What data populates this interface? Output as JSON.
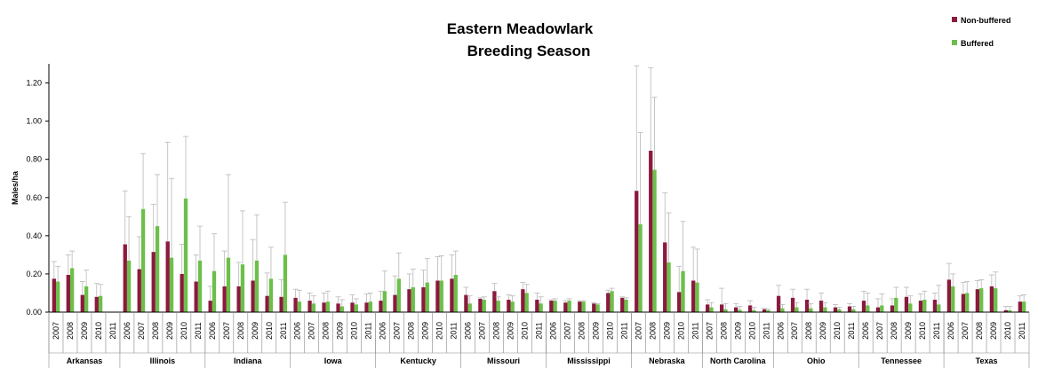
{
  "chart_data": {
    "type": "bar",
    "title_lines": [
      "Eastern Meadowlark",
      "Breeding Season"
    ],
    "ylabel": "Males/ha",
    "ylim": [
      0,
      1.3
    ],
    "yticks": [
      "0.00",
      "0.20",
      "0.40",
      "0.60",
      "0.80",
      "1.00",
      "1.20"
    ],
    "ytick_values": [
      0,
      0.2,
      0.4,
      0.6,
      0.8,
      1.0,
      1.2
    ],
    "legend_position": "top-right",
    "series": [
      {
        "name": "Non-buffered",
        "color": "#8B1A3D"
      },
      {
        "name": "Buffered",
        "color": "#6CC04A"
      }
    ],
    "error_bar_color": "#b8b8b8",
    "groups": [
      {
        "state": "Arkansas",
        "years": [
          "2007",
          "2008",
          "2009",
          "2010",
          "2011"
        ],
        "non_buffered": [
          0.175,
          0.195,
          0.09,
          0.08,
          null
        ],
        "nb_err": [
          0.265,
          0.3,
          0.16,
          0.15,
          null
        ],
        "buffered": [
          0.16,
          0.23,
          0.135,
          0.085,
          null
        ],
        "b_err": [
          0.24,
          0.32,
          0.22,
          0.145,
          null
        ]
      },
      {
        "state": "Illinois",
        "years": [
          "2006",
          "2007",
          "2008",
          "2009",
          "2010",
          "2011"
        ],
        "non_buffered": [
          0.355,
          0.225,
          0.315,
          0.37,
          0.2,
          0.16
        ],
        "nb_err": [
          0.635,
          0.395,
          0.565,
          0.89,
          0.355,
          0.3
        ],
        "buffered": [
          0.27,
          0.54,
          0.45,
          0.285,
          0.595,
          0.27
        ],
        "b_err": [
          0.5,
          0.83,
          0.72,
          0.7,
          0.92,
          0.45
        ]
      },
      {
        "state": "Indiana",
        "years": [
          "2006",
          "2007",
          "2008",
          "2009",
          "2010",
          "2011"
        ],
        "non_buffered": [
          0.06,
          0.135,
          0.135,
          0.165,
          0.085,
          0.08
        ],
        "nb_err": [
          0.135,
          0.32,
          0.26,
          0.38,
          0.205,
          0.17
        ],
        "buffered": [
          0.215,
          0.285,
          0.25,
          0.27,
          0.175,
          0.3
        ],
        "b_err": [
          0.41,
          0.72,
          0.53,
          0.51,
          0.34,
          0.575
        ]
      },
      {
        "state": "Iowa",
        "years": [
          "2006",
          "2007",
          "2008",
          "2009",
          "2010",
          "2011"
        ],
        "non_buffered": [
          0.075,
          0.06,
          0.05,
          0.045,
          0.05,
          0.05
        ],
        "nb_err": [
          0.12,
          0.1,
          0.1,
          0.08,
          0.09,
          0.095
        ],
        "buffered": [
          0.055,
          0.045,
          0.055,
          0.03,
          0.04,
          0.055
        ],
        "b_err": [
          0.115,
          0.085,
          0.11,
          0.065,
          0.07,
          0.1
        ]
      },
      {
        "state": "Kentucky",
        "years": [
          "2006",
          "2007",
          "2008",
          "2009",
          "2010",
          "2011"
        ],
        "non_buffered": [
          0.06,
          0.09,
          0.12,
          0.13,
          0.165,
          0.175
        ],
        "nb_err": [
          0.11,
          0.19,
          0.2,
          0.22,
          0.29,
          0.3
        ],
        "buffered": [
          0.11,
          0.175,
          0.13,
          0.155,
          0.165,
          0.195
        ],
        "b_err": [
          0.215,
          0.31,
          0.225,
          0.28,
          0.295,
          0.32
        ]
      },
      {
        "state": "Missouri",
        "years": [
          "2006",
          "2007",
          "2008",
          "2009",
          "2010",
          "2011"
        ],
        "non_buffered": [
          0.09,
          0.07,
          0.11,
          0.065,
          0.12,
          0.065
        ],
        "nb_err": [
          0.13,
          0.075,
          0.15,
          0.09,
          0.155,
          0.1
        ],
        "buffered": [
          0.045,
          0.065,
          0.06,
          0.055,
          0.1,
          0.045
        ],
        "b_err": [
          0.085,
          0.08,
          0.08,
          0.085,
          0.145,
          0.08
        ]
      },
      {
        "state": "Mississippi",
        "years": [
          "2006",
          "2007",
          "2008",
          "2009",
          "2010",
          "2011"
        ],
        "non_buffered": [
          0.06,
          0.05,
          0.055,
          0.045,
          0.1,
          0.075
        ],
        "nb_err": [
          0.065,
          0.06,
          0.06,
          0.05,
          0.115,
          0.08
        ],
        "buffered": [
          0.06,
          0.06,
          0.055,
          0.04,
          0.11,
          0.065
        ],
        "b_err": [
          0.07,
          0.07,
          0.06,
          0.045,
          0.125,
          0.075
        ]
      },
      {
        "state": "Nebraska",
        "years": [
          "2007",
          "2008",
          "2009",
          "2010",
          "2011"
        ],
        "non_buffered": [
          0.635,
          0.845,
          0.365,
          0.105,
          0.165
        ],
        "nb_err": [
          1.29,
          1.28,
          0.625,
          0.24,
          0.34
        ],
        "buffered": [
          0.46,
          0.745,
          0.26,
          0.215,
          0.155
        ],
        "b_err": [
          0.94,
          1.125,
          0.52,
          0.475,
          0.33
        ]
      },
      {
        "state": "North Carolina",
        "years": [
          "2007",
          "2008",
          "2009",
          "2010",
          "2011"
        ],
        "non_buffered": [
          0.04,
          0.04,
          0.025,
          0.035,
          0.015
        ],
        "nb_err": [
          0.065,
          0.125,
          0.045,
          0.06,
          0.02
        ],
        "buffered": [
          0.025,
          0.015,
          0.012,
          0.01,
          0.01
        ],
        "b_err": [
          0.05,
          0.045,
          0.03,
          0.025,
          0.015
        ]
      },
      {
        "state": "Ohio",
        "years": [
          "2006",
          "2007",
          "2008",
          "2009",
          "2010",
          "2011"
        ],
        "non_buffered": [
          0.085,
          0.075,
          0.065,
          0.06,
          0.025,
          0.03
        ],
        "nb_err": [
          0.14,
          0.12,
          0.12,
          0.1,
          0.04,
          0.045
        ],
        "buffered": [
          0.02,
          0.025,
          0.02,
          0.025,
          0.015,
          0.015
        ],
        "b_err": [
          0.04,
          0.05,
          0.045,
          0.05,
          0.025,
          0.03
        ]
      },
      {
        "state": "Tennessee",
        "years": [
          "2006",
          "2007",
          "2008",
          "2009",
          "2010",
          "2011"
        ],
        "non_buffered": [
          0.06,
          0.025,
          0.035,
          0.08,
          0.06,
          0.065
        ],
        "nb_err": [
          0.11,
          0.07,
          0.07,
          0.13,
          0.095,
          0.1
        ],
        "buffered": [
          0.035,
          0.035,
          0.075,
          0.045,
          0.065,
          0.04
        ],
        "b_err": [
          0.1,
          0.095,
          0.13,
          0.085,
          0.11,
          0.14
        ]
      },
      {
        "state": "Texas",
        "years": [
          "2006",
          "2007",
          "2008",
          "2009",
          "2010",
          "2011"
        ],
        "non_buffered": [
          0.17,
          0.095,
          0.12,
          0.135,
          0.01,
          0.055
        ],
        "nb_err": [
          0.255,
          0.155,
          0.165,
          0.195,
          0.03,
          0.085
        ],
        "buffered": [
          0.135,
          0.1,
          0.125,
          0.125,
          0.01,
          0.055
        ],
        "b_err": [
          0.2,
          0.16,
          0.17,
          0.21,
          0.03,
          0.09
        ]
      }
    ]
  }
}
